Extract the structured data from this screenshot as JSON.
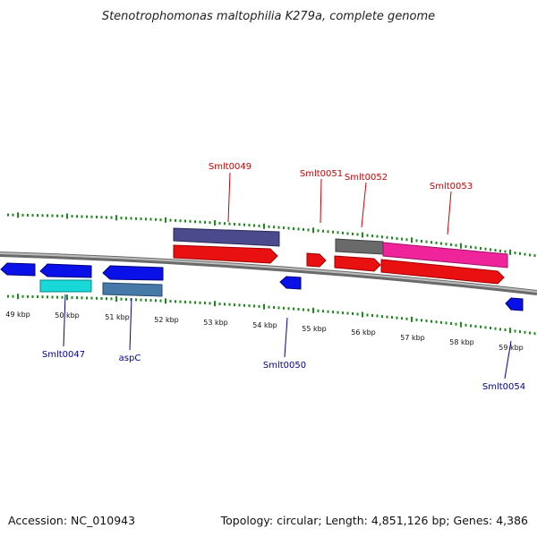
{
  "title": "Stenotrophomonas maltophilia K279a, complete genome",
  "footer": {
    "accession": "Accession: NC_010943",
    "summary": "Topology: circular; Length: 4,851,126 bp; Genes: 4,386"
  },
  "colors": {
    "tick": "#1a8a1a",
    "backbone": "#888888",
    "label_forward": "#cc0000",
    "label_reverse": "#000099"
  },
  "scale": {
    "ticks": [
      "49 kbp",
      "50 kbp",
      "51 kbp",
      "52 kbp",
      "53 kbp",
      "54 kbp",
      "55 kbp",
      "56 kbp",
      "57 kbp",
      "58 kbp",
      "59 kbp"
    ]
  },
  "genes": {
    "forward": [
      {
        "label": "Smlt0049"
      },
      {
        "label": "Smlt0051"
      },
      {
        "label": "Smlt0052"
      },
      {
        "label": "Smlt0053"
      }
    ],
    "reverse": [
      {
        "label": "Smlt0047"
      },
      {
        "label": "aspC"
      },
      {
        "label": "Smlt0050"
      },
      {
        "label": "Smlt0054"
      }
    ]
  }
}
